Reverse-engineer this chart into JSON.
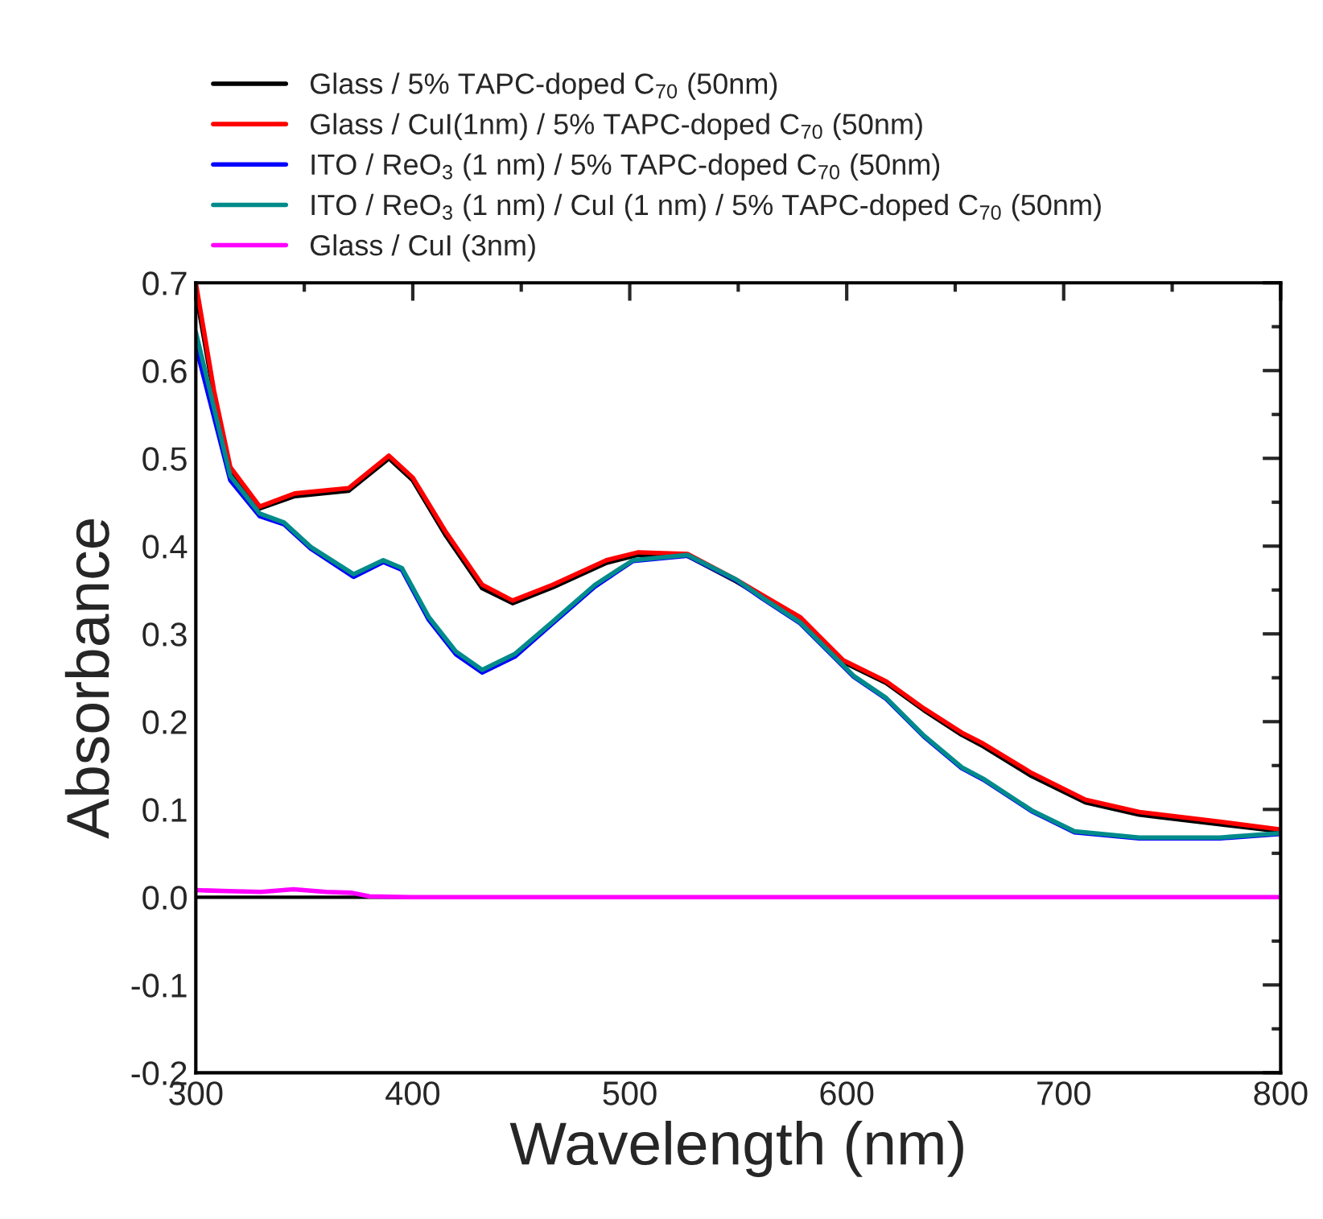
{
  "chart_data": {
    "type": "line",
    "xlabel": "Wavelength (nm)",
    "ylabel": "Absorbance",
    "xlim": [
      300,
      800
    ],
    "ylim": [
      -0.2,
      0.7
    ],
    "xticks": [
      300,
      400,
      500,
      600,
      700,
      800
    ],
    "yticks": [
      {
        "value": -0.2,
        "label": "-0.2"
      },
      {
        "value": -0.1,
        "label": "-0.1"
      },
      {
        "value": 0,
        "label": "0.0"
      },
      0.1,
      0.2,
      0.3,
      0.4,
      0.5,
      0.6,
      0.7
    ],
    "grid": false,
    "legend": "top",
    "line_style": "solid",
    "marker": "none",
    "ref_lines": [
      {
        "axis": "y",
        "value": 0,
        "color": "#000000"
      }
    ],
    "series": [
      {
        "name": "Glass / 5% TAPC-doped C$_{70}$ (50nm)",
        "color": "#000000",
        "x": [
          300,
          308.4,
          315.9,
          329.5,
          345.6,
          370.4,
          389,
          400,
          415,
          432,
          446,
          464.5,
          489.3,
          504,
          526.6,
          548.9,
          561.3,
          578.6,
          598.4,
          618.2,
          635.6,
          653,
          662.9,
          685.2,
          710,
          734.8,
          772,
          800
        ],
        "values": [
          0.69,
          0.572,
          0.487,
          0.443,
          0.457,
          0.463,
          0.5,
          0.475,
          0.413,
          0.352,
          0.335,
          0.353,
          0.381,
          0.39,
          0.389,
          0.36,
          0.342,
          0.317,
          0.268,
          0.244,
          0.213,
          0.185,
          0.172,
          0.138,
          0.108,
          0.094,
          0.083,
          0.075
        ]
      },
      {
        "name": "Glass / CuI(1nm) / 5% TAPC-doped C$_{70}$ (50nm)",
        "color": "#ff0000",
        "x": [
          300,
          308.4,
          315.9,
          329.5,
          345.6,
          370.4,
          389,
          400,
          415,
          432,
          446,
          464.5,
          489.3,
          504,
          526.6,
          548.9,
          561.3,
          578.6,
          598.4,
          618.2,
          635.6,
          653,
          662.9,
          685.2,
          710,
          734.8,
          772,
          800
        ],
        "values": [
          0.7,
          0.577,
          0.49,
          0.445,
          0.46,
          0.466,
          0.503,
          0.478,
          0.417,
          0.356,
          0.338,
          0.356,
          0.384,
          0.393,
          0.391,
          0.362,
          0.344,
          0.319,
          0.27,
          0.246,
          0.215,
          0.1875,
          0.175,
          0.1415,
          0.111,
          0.097,
          0.086,
          0.077
        ]
      },
      {
        "name": "ITO / ReO$_{3}$ (1 nm) / 5% TAPC-doped C$_{70}$ (50nm)",
        "color": "#0000ff",
        "x": [
          300,
          315.9,
          329.5,
          340.6,
          353,
          372.7,
          386.4,
          395,
          407.4,
          419.8,
          432,
          447,
          464.5,
          484,
          501.5,
          526.6,
          549,
          561.3,
          578.6,
          603.3,
          618.2,
          635.6,
          653,
          662.9,
          685.2,
          705,
          734.8,
          772,
          800
        ],
        "values": [
          0.628,
          0.475,
          0.434,
          0.425,
          0.397,
          0.365,
          0.382,
          0.373,
          0.316,
          0.277,
          0.256,
          0.274,
          0.312,
          0.354,
          0.383,
          0.389,
          0.361,
          0.34,
          0.312,
          0.251,
          0.226,
          0.183,
          0.147,
          0.134,
          0.098,
          0.074,
          0.067,
          0.067,
          0.072
        ]
      },
      {
        "name": "ITO / ReO$_{3}$ (1 nm) / CuI (1 nm) / 5% TAPC-doped C$_{70}$ (50nm)",
        "color": "#008b8b",
        "x": [
          300,
          315.9,
          329.5,
          340.6,
          353,
          372.7,
          386.4,
          395,
          407.4,
          419.8,
          432,
          447,
          464.5,
          484,
          501.5,
          526.6,
          549,
          561.3,
          578.6,
          603.3,
          618.2,
          635.6,
          653,
          662.9,
          685.2,
          705,
          734.8,
          772,
          800
        ],
        "values": [
          0.644,
          0.48,
          0.437,
          0.427,
          0.399,
          0.368,
          0.384,
          0.375,
          0.319,
          0.28,
          0.259,
          0.277,
          0.314,
          0.356,
          0.384,
          0.39,
          0.362,
          0.341,
          0.313,
          0.252,
          0.227,
          0.184,
          0.148,
          0.135,
          0.099,
          0.075,
          0.068,
          0.068,
          0.073
        ]
      },
      {
        "name": "Glass / CuI (3nm)",
        "color": "#ff00ff",
        "x": [
          300,
          315,
          330,
          345,
          360,
          372,
          380,
          400,
          500,
          600,
          700,
          800
        ],
        "values": [
          0.008,
          0.007,
          0.006,
          0.009,
          0.006,
          0.005,
          0.001,
          0.0,
          0.0,
          0.0,
          0.0,
          0.0
        ]
      }
    ]
  }
}
